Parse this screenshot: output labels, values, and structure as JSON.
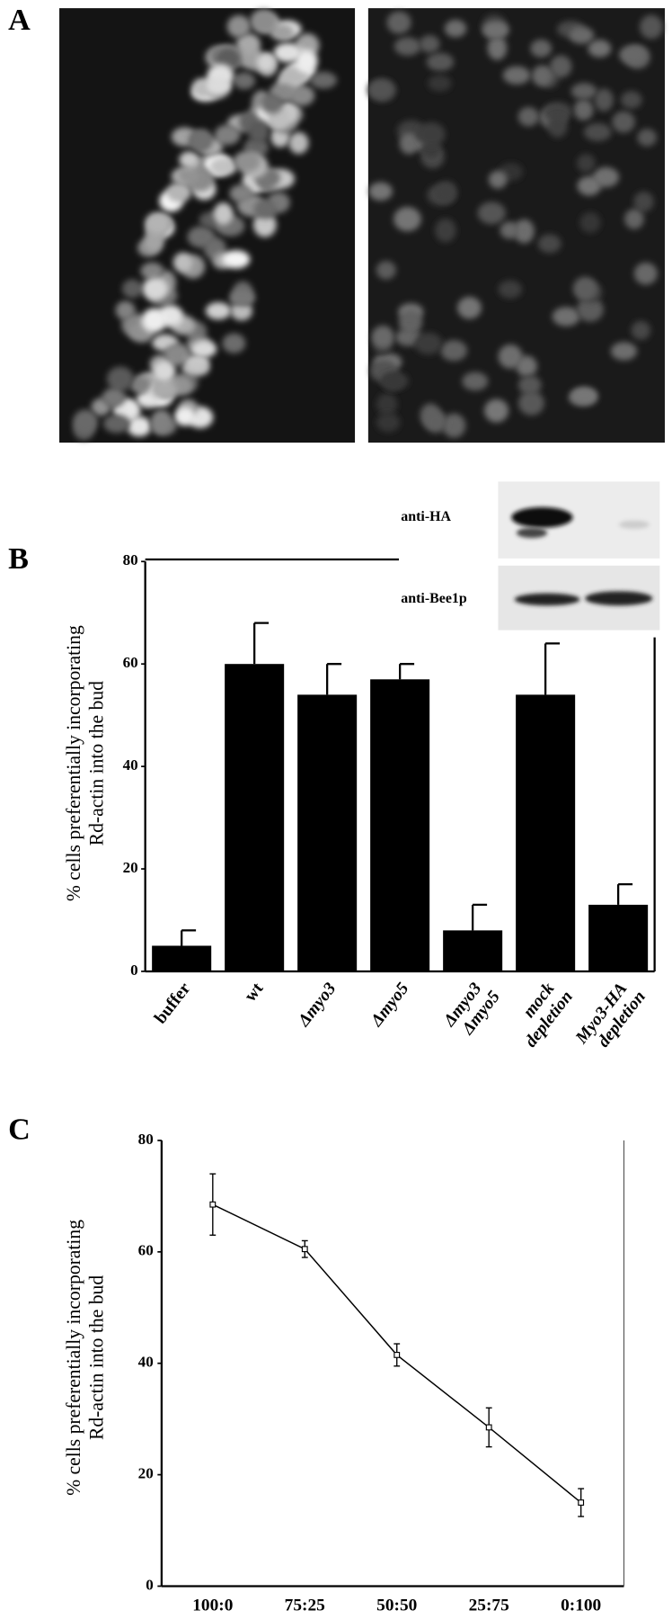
{
  "panel_labels": [
    "A",
    "B",
    "C"
  ],
  "blot": {
    "rows": [
      "anti-HA",
      "anti-Bee1p"
    ]
  },
  "chart_data": [
    {
      "type": "bar",
      "ylabel": [
        "% cells preferentially incorporating",
        "Rd-actin into the bud"
      ],
      "categories": [
        [
          "buffer"
        ],
        [
          "wt"
        ],
        [
          "Δmyo3"
        ],
        [
          "Δmyo5"
        ],
        [
          "Δmyo3",
          "Δmyo5"
        ],
        [
          "mock",
          "depletion"
        ],
        [
          "Myo3-HA",
          "depletion"
        ]
      ],
      "values": [
        5,
        60,
        54,
        57,
        8,
        54,
        13
      ],
      "errors": [
        3,
        8,
        6,
        3,
        5,
        10,
        4
      ],
      "color": "#000000",
      "ylim": [
        0,
        80
      ],
      "yticks": [
        0,
        20,
        40,
        60,
        80
      ]
    },
    {
      "type": "line",
      "ylabel": [
        "% cells preferentially incorporating",
        "Rd-actin into the bud"
      ],
      "categories": [
        "100:0",
        "75:25",
        "50:50",
        "25:75",
        "0:100"
      ],
      "values": [
        68.5,
        60.5,
        41.5,
        28.5,
        15
      ],
      "errors": [
        5.5,
        1.5,
        2,
        3.5,
        2.5
      ],
      "color": "#000000",
      "ylim": [
        0,
        80
      ],
      "yticks": [
        0,
        20,
        40,
        60,
        80
      ]
    }
  ]
}
